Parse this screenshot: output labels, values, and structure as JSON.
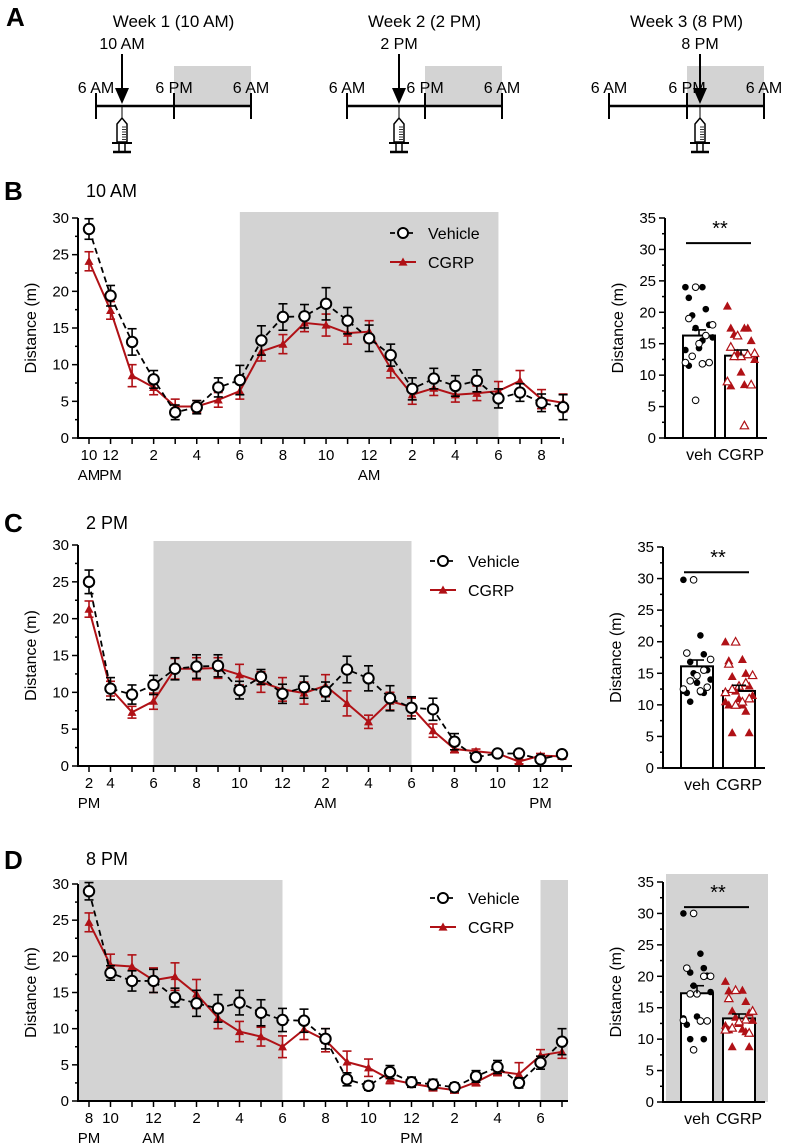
{
  "panel_a": {
    "label": "A",
    "timelines": [
      {
        "title": "Week 1 (10 AM)",
        "injection_time": "10 AM",
        "ticks": [
          "6 AM",
          "6 PM",
          "6 AM"
        ]
      },
      {
        "title": "Week 2 (2 PM)",
        "injection_time": "2 PM",
        "ticks": [
          "6 AM",
          "6 PM",
          "6 AM"
        ]
      },
      {
        "title": "Week 3 (8 PM)",
        "injection_time": "8 PM",
        "ticks": [
          "6 AM",
          "6 PM",
          "6 AM"
        ]
      }
    ],
    "dark_color": "#d3d3d3"
  },
  "chart_data": [
    {
      "panel": "B",
      "title": "10 AM",
      "type": "line",
      "ylabel": "Distance (m)",
      "xlabel": "",
      "ylim": [
        0,
        30
      ],
      "yticks": [
        "0",
        "5",
        "10",
        "15",
        "20",
        "25",
        "30"
      ],
      "legend": "top-right",
      "grid": false,
      "x_ticks": [
        {
          "index": 0,
          "label": "10",
          "sub": "AM"
        },
        {
          "index": 1,
          "label": "12",
          "sub": "PM"
        },
        {
          "index": 3,
          "label": "2",
          "sub": ""
        },
        {
          "index": 5,
          "label": "4",
          "sub": ""
        },
        {
          "index": 7,
          "label": "6",
          "sub": ""
        },
        {
          "index": 9,
          "label": "8",
          "sub": ""
        },
        {
          "index": 11,
          "label": "10",
          "sub": ""
        },
        {
          "index": 13,
          "label": "12",
          "sub": "AM"
        },
        {
          "index": 15,
          "label": "2",
          "sub": ""
        },
        {
          "index": 17,
          "label": "4",
          "sub": ""
        },
        {
          "index": 19,
          "label": "6",
          "sub": ""
        },
        {
          "index": 21,
          "label": "8",
          "sub": ""
        }
      ],
      "dark_phase": [
        [
          7,
          19
        ]
      ],
      "series": [
        {
          "name": "Vehicle",
          "color": "#000000",
          "values": [
            28.5,
            19.4,
            13.1,
            8.0,
            3.5,
            4.2,
            6.9,
            7.9,
            13.3,
            16.5,
            16.6,
            18.3,
            16.0,
            13.6,
            11.3,
            6.7,
            8.1,
            7.1,
            7.8,
            5.4,
            6.2,
            4.8,
            4.2
          ],
          "sem": [
            1.4,
            1.4,
            1.8,
            1.2,
            1.0,
            0.9,
            1.3,
            2.0,
            2.0,
            1.8,
            1.6,
            2.2,
            1.8,
            1.8,
            1.5,
            1.5,
            1.4,
            1.4,
            1.5,
            1.3,
            1.2,
            1.2,
            1.7
          ]
        },
        {
          "name": "CGRP",
          "color": "#b01116",
          "values": [
            24.1,
            17.4,
            8.5,
            6.9,
            4.3,
            4.3,
            5.2,
            6.4,
            11.8,
            12.8,
            15.7,
            15.4,
            14.3,
            14.5,
            9.5,
            5.9,
            6.8,
            5.9,
            6.1,
            6.4,
            7.8,
            5.3,
            4.8
          ],
          "sem": [
            1.3,
            1.2,
            1.5,
            1.0,
            1.0,
            0.8,
            1.0,
            1.1,
            1.3,
            1.3,
            1.2,
            1.5,
            1.5,
            1.5,
            1.3,
            1.3,
            1.0,
            1.0,
            1.0,
            1.3,
            1.4,
            1.3,
            1.2
          ]
        }
      ]
    },
    {
      "panel": "B",
      "type": "bar",
      "ylabel": "Distance (m)",
      "ylim": [
        0,
        35
      ],
      "yticks": [
        "0",
        "5",
        "10",
        "15",
        "20",
        "25",
        "30",
        "35"
      ],
      "categories": [
        "veh",
        "CGRP"
      ],
      "values": [
        16.3,
        13.1
      ],
      "sem": [
        0.9,
        0.9
      ],
      "significance": "**",
      "colors": [
        "#000000",
        "#b01116"
      ],
      "dark_background": false,
      "points": [
        {
          "filled": [
            24.0,
            24.0,
            22.3,
            20.5,
            19.5,
            18.0,
            17.5,
            16.0,
            14.3,
            14.0,
            15.5,
            11.5
          ],
          "open": [
            24.0,
            19.0,
            18.0,
            16.3,
            15.0,
            13.0,
            12.0,
            12.0,
            11.8,
            6.0
          ]
        },
        {
          "filled": [
            21.0,
            17.5,
            17.5,
            17.5,
            16.5,
            15.5,
            13.5,
            12.5,
            10.5,
            9.0,
            8.5,
            8.3
          ],
          "open": [
            16.3,
            14.5,
            13.5,
            13.3,
            13.0,
            13.0,
            9.0,
            8.5,
            2.0
          ]
        }
      ]
    },
    {
      "panel": "C",
      "title": "2 PM",
      "type": "line",
      "ylabel": "Distance (m)",
      "xlabel": "",
      "ylim": [
        0,
        30
      ],
      "yticks": [
        "0",
        "5",
        "10",
        "15",
        "20",
        "25",
        "30"
      ],
      "legend": "top-right",
      "grid": false,
      "x_ticks": [
        {
          "index": 0,
          "label": "2",
          "sub": "PM"
        },
        {
          "index": 1,
          "label": "4",
          "sub": ""
        },
        {
          "index": 3,
          "label": "6",
          "sub": ""
        },
        {
          "index": 5,
          "label": "8",
          "sub": ""
        },
        {
          "index": 7,
          "label": "10",
          "sub": ""
        },
        {
          "index": 9,
          "label": "12",
          "sub": ""
        },
        {
          "index": 11,
          "label": "2",
          "sub": "AM"
        },
        {
          "index": 13,
          "label": "4",
          "sub": ""
        },
        {
          "index": 15,
          "label": "6",
          "sub": ""
        },
        {
          "index": 17,
          "label": "8",
          "sub": ""
        },
        {
          "index": 19,
          "label": "10",
          "sub": ""
        },
        {
          "index": 21,
          "label": "12",
          "sub": "PM"
        }
      ],
      "dark_phase": [
        [
          3,
          15
        ]
      ],
      "series": [
        {
          "name": "Vehicle",
          "color": "#000000",
          "values": [
            25.0,
            10.5,
            9.7,
            11.0,
            13.2,
            13.5,
            13.6,
            10.3,
            12.1,
            9.8,
            10.7,
            10.1,
            13.1,
            11.9,
            9.2,
            7.9,
            7.7,
            3.3,
            1.2,
            1.7,
            1.7,
            0.9,
            1.6
          ],
          "sem": [
            1.6,
            1.5,
            1.3,
            1.3,
            1.5,
            1.6,
            1.5,
            1.2,
            1.0,
            1.3,
            1.5,
            1.3,
            1.8,
            1.7,
            1.7,
            1.5,
            1.5,
            1.1,
            0.4,
            0.3,
            0.3,
            0.4,
            0.3
          ]
        },
        {
          "name": "CGRP",
          "color": "#b01116",
          "values": [
            21.3,
            10.5,
            7.3,
            8.8,
            13.2,
            13.2,
            13.3,
            12.4,
            11.4,
            10.4,
            9.9,
            10.9,
            8.5,
            6.0,
            8.8,
            8.0,
            4.8,
            2.3,
            2.0,
            1.7,
            0.6,
            1.4,
            1.3
          ],
          "sem": [
            1.1,
            1.0,
            0.8,
            1.1,
            1.4,
            1.5,
            1.4,
            1.4,
            1.4,
            1.6,
            1.5,
            1.5,
            1.7,
            0.9,
            1.2,
            1.2,
            0.9,
            0.5,
            0.3,
            0.3,
            0.3,
            0.3,
            0.3
          ]
        }
      ]
    },
    {
      "panel": "C",
      "type": "bar",
      "ylabel": "Distance (m)",
      "ylim": [
        0,
        35
      ],
      "yticks": [
        "0",
        "5",
        "10",
        "15",
        "20",
        "25",
        "30",
        "35"
      ],
      "categories": [
        "veh",
        "CGRP"
      ],
      "values": [
        16.1,
        12.2
      ],
      "sem": [
        1.0,
        0.9
      ],
      "significance": "**",
      "colors": [
        "#000000",
        "#b01116"
      ],
      "dark_background": false,
      "points": [
        {
          "filled": [
            29.8,
            21.0,
            18.2,
            18.0,
            16.8,
            15.5,
            15.0,
            14.0,
            13.5,
            12.2,
            12.0,
            11.9,
            11.9,
            10.5
          ],
          "open": [
            29.8,
            18.2,
            17.2,
            15.5,
            14.6,
            13.8,
            12.5,
            12.8,
            12.2
          ]
        },
        {
          "filled": [
            20.0,
            17.2,
            17.0,
            15.0,
            14.5,
            13.0,
            12.2,
            11.5,
            11.0,
            10.5,
            10.0,
            10.0,
            9.0,
            5.6,
            5.6
          ],
          "open": [
            20.0,
            16.5,
            14.7,
            13.5,
            13.0,
            12.5,
            12.0,
            11.0,
            10.5,
            10.0
          ]
        }
      ]
    },
    {
      "panel": "D",
      "title": "8 PM",
      "type": "line",
      "ylabel": "Distance (m)",
      "xlabel": "",
      "ylim": [
        0,
        30
      ],
      "yticks": [
        "0",
        "5",
        "10",
        "15",
        "20",
        "25",
        "30"
      ],
      "legend": "top-right",
      "grid": false,
      "x_ticks": [
        {
          "index": 0,
          "label": "8",
          "sub": "PM"
        },
        {
          "index": 1,
          "label": "10",
          "sub": ""
        },
        {
          "index": 3,
          "label": "12",
          "sub": "AM"
        },
        {
          "index": 5,
          "label": "2",
          "sub": ""
        },
        {
          "index": 7,
          "label": "4",
          "sub": ""
        },
        {
          "index": 9,
          "label": "6",
          "sub": ""
        },
        {
          "index": 11,
          "label": "8",
          "sub": ""
        },
        {
          "index": 13,
          "label": "10",
          "sub": ""
        },
        {
          "index": 15,
          "label": "12",
          "sub": "PM"
        },
        {
          "index": 17,
          "label": "2",
          "sub": ""
        },
        {
          "index": 19,
          "label": "4",
          "sub": ""
        },
        {
          "index": 21,
          "label": "6",
          "sub": ""
        }
      ],
      "dark_phase": [
        [
          -0.5,
          9
        ],
        [
          21,
          22.5
        ]
      ],
      "series": [
        {
          "name": "Vehicle",
          "color": "#000000",
          "values": [
            29.0,
            17.7,
            16.6,
            16.6,
            14.3,
            13.5,
            12.8,
            13.6,
            12.2,
            11.2,
            11.1,
            8.6,
            3.0,
            2.1,
            4.0,
            2.6,
            2.3,
            1.9,
            3.4,
            4.7,
            2.5,
            5.3,
            8.2
          ],
          "sem": [
            1.2,
            1.0,
            1.4,
            1.6,
            1.3,
            1.8,
            1.9,
            1.7,
            1.8,
            1.6,
            1.6,
            1.4,
            0.9,
            0.6,
            0.9,
            0.7,
            0.7,
            0.6,
            0.8,
            0.9,
            0.7,
            0.9,
            1.8
          ]
        },
        {
          "name": "CGRP",
          "color": "#b01116",
          "values": [
            24.7,
            18.8,
            18.6,
            16.7,
            17.2,
            14.8,
            11.5,
            9.6,
            8.9,
            7.5,
            9.9,
            8.4,
            5.4,
            4.6,
            3.0,
            2.4,
            1.9,
            1.5,
            2.6,
            4.1,
            3.7,
            6.3,
            6.8
          ],
          "sem": [
            1.3,
            1.5,
            1.6,
            1.7,
            1.9,
            2.0,
            1.5,
            1.4,
            1.3,
            1.5,
            1.4,
            1.6,
            1.5,
            1.2,
            0.6,
            0.5,
            0.5,
            0.4,
            0.5,
            0.6,
            1.6,
            0.8,
            0.9
          ]
        }
      ]
    },
    {
      "panel": "D",
      "type": "bar",
      "ylabel": "Distance (m)",
      "ylim": [
        0,
        35
      ],
      "yticks": [
        "0",
        "5",
        "10",
        "15",
        "20",
        "25",
        "30",
        "35"
      ],
      "categories": [
        "veh",
        "CGRP"
      ],
      "values": [
        17.3,
        13.3
      ],
      "sem": [
        1.2,
        0.7
      ],
      "significance": "**",
      "colors": [
        "#000000",
        "#b01116"
      ],
      "dark_background": true,
      "points": [
        {
          "filled": [
            30.0,
            23.6,
            21.3,
            21.3,
            20.6,
            20.1,
            18.5,
            17.5,
            13.6,
            13.3,
            12.8,
            12.3,
            10.0,
            10.0
          ],
          "open": [
            30.0,
            21.3,
            20.0,
            20.0,
            17.2,
            17.2,
            13.0,
            12.9,
            12.9,
            8.3
          ]
        },
        {
          "filled": [
            19.2,
            17.8,
            17.7,
            16.0,
            14.5,
            14.2,
            13.5,
            13.0,
            12.5,
            12.2,
            11.6,
            11.5,
            11.2,
            8.8,
            8.8
          ],
          "open": [
            17.8,
            16.5,
            14.5,
            13.1,
            12.8,
            11.8,
            11.5,
            11.0
          ]
        }
      ]
    }
  ]
}
